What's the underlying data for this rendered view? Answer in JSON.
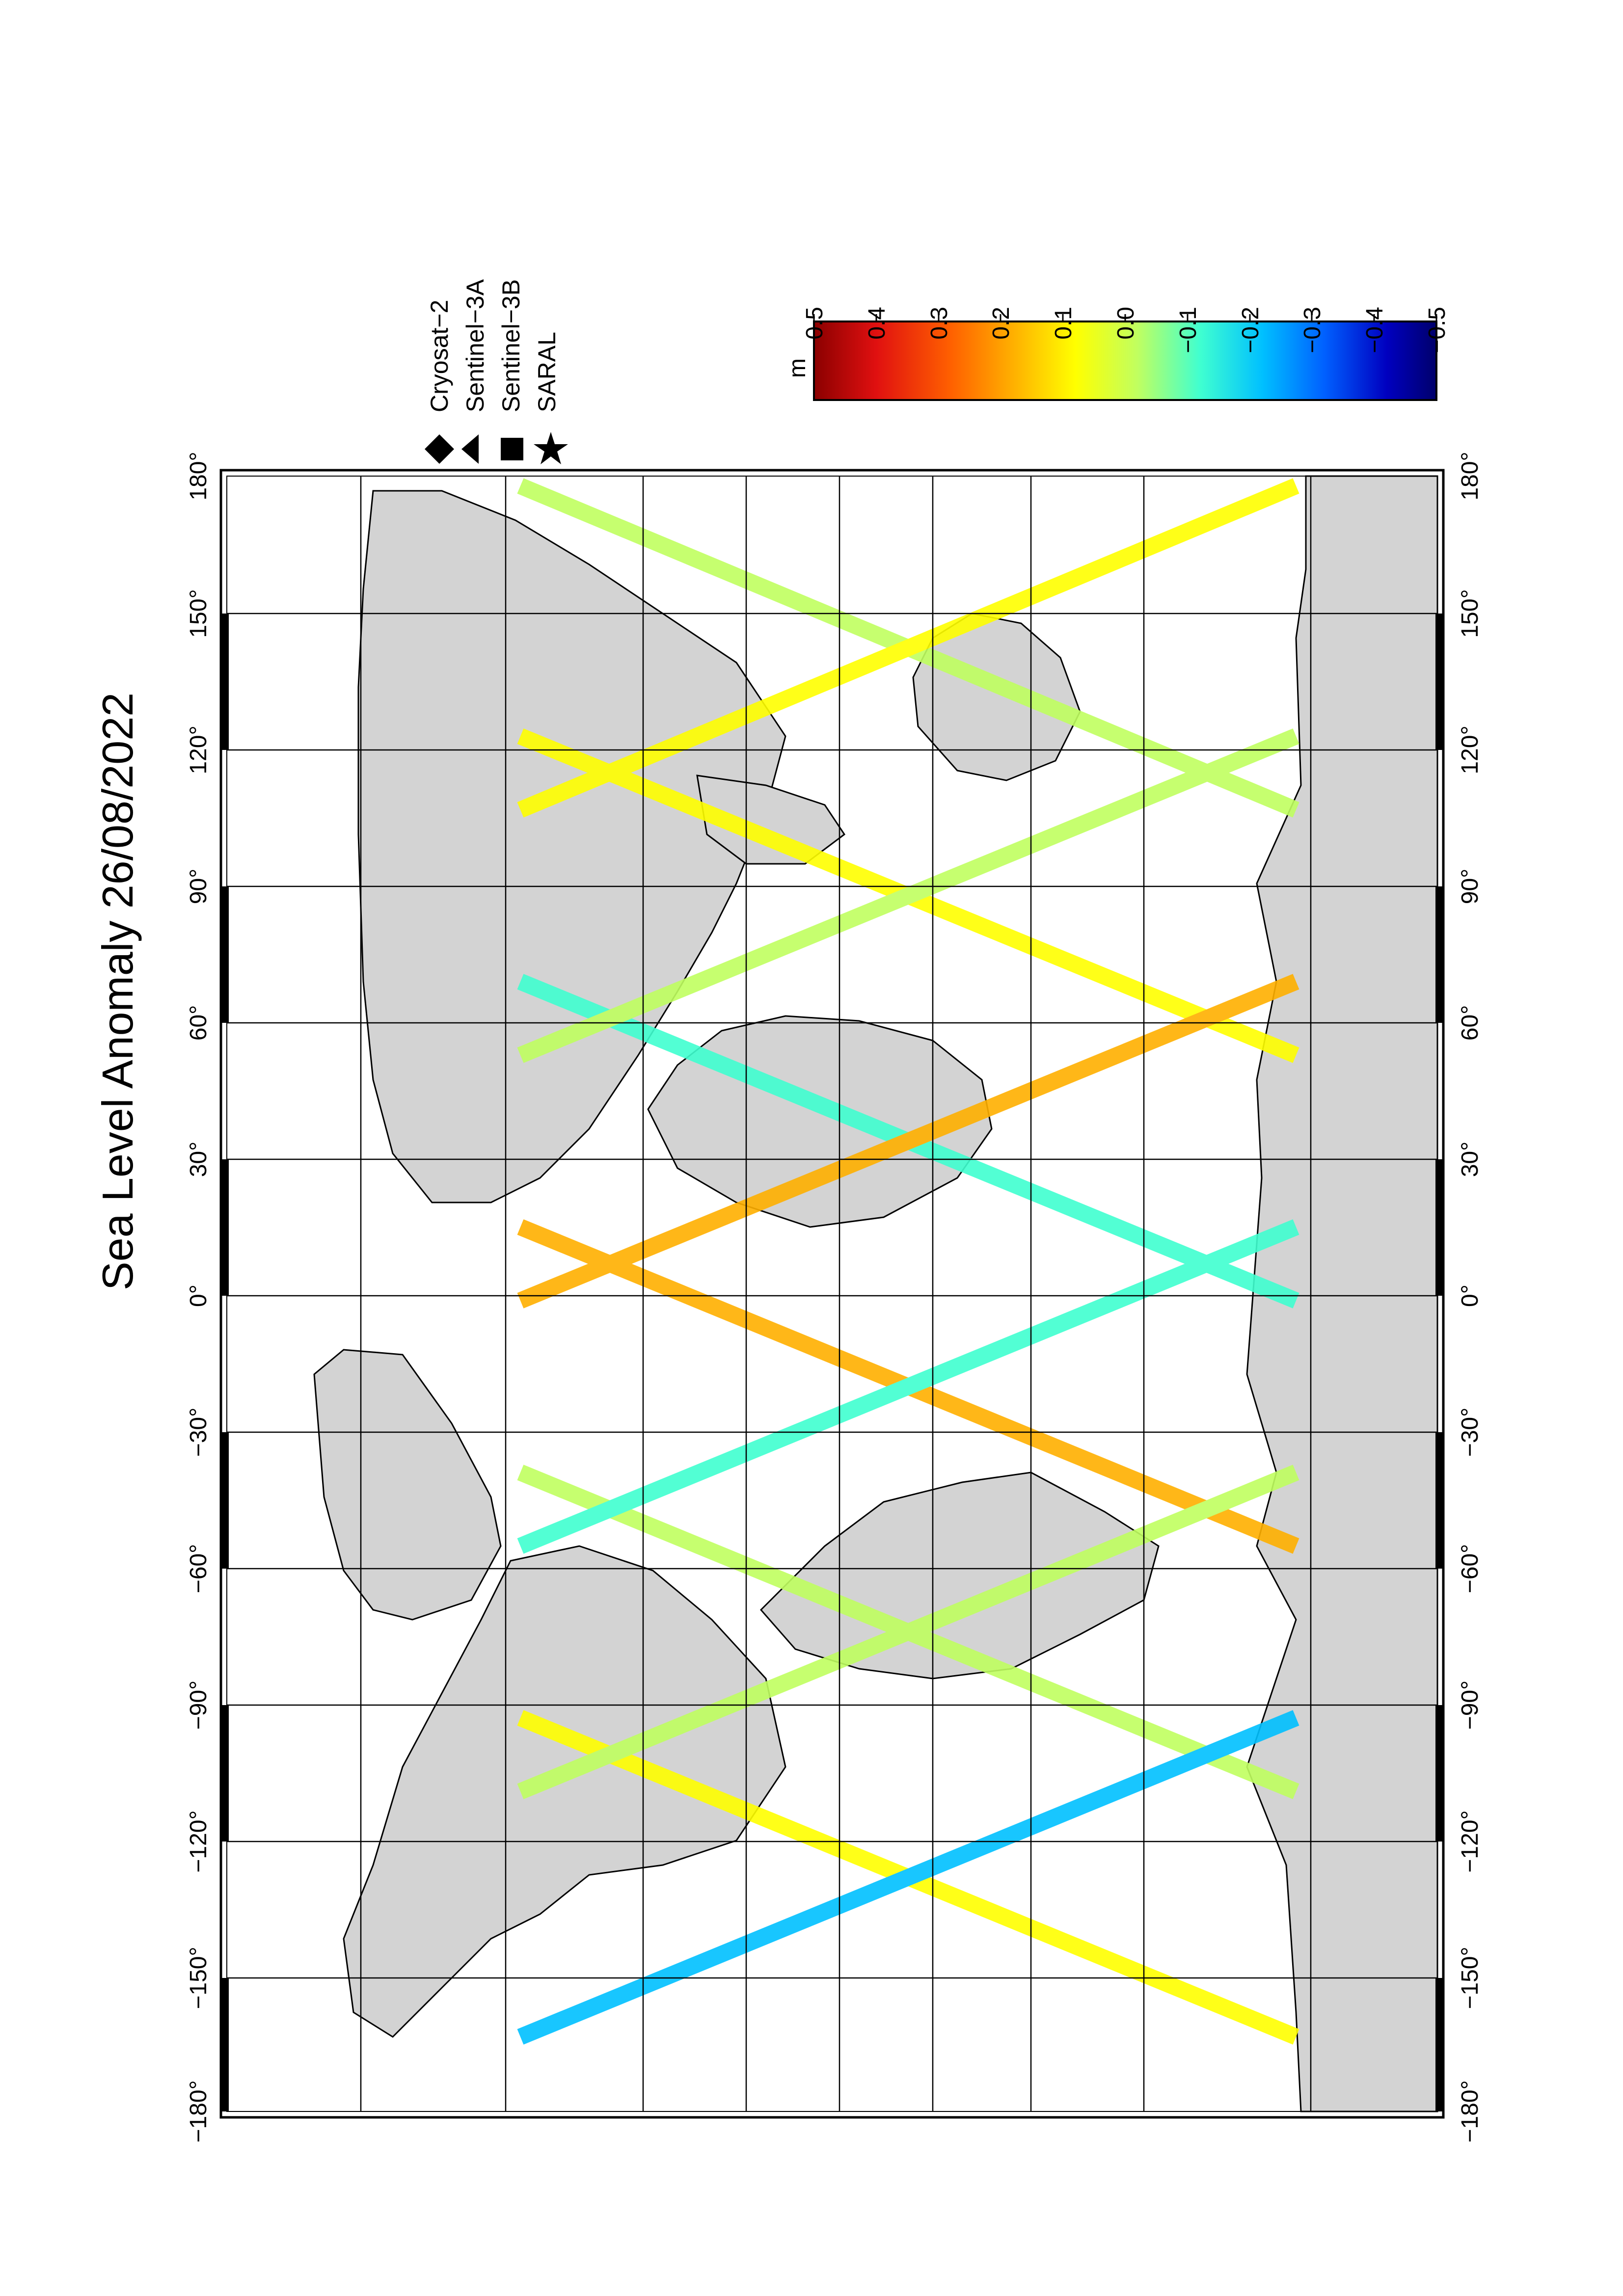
{
  "title": "Sea Level Anomaly 26/08/2022",
  "longitude_ticks": [
    "−180°",
    "−150°",
    "−120°",
    "−90°",
    "−60°",
    "−30°",
    "0°",
    "30°",
    "60°",
    "90°",
    "120°",
    "150°",
    "180°"
  ],
  "legend": {
    "items": [
      {
        "label": "Cryosat−2",
        "icon": "diamond-icon"
      },
      {
        "label": "Sentinel−3A",
        "icon": "triangle-icon"
      },
      {
        "label": "Sentinel−3B",
        "icon": "square-icon"
      },
      {
        "label": "SARAL",
        "icon": "star-icon"
      }
    ]
  },
  "colorbar": {
    "unit": "m",
    "ticks": [
      "0.5",
      "0.4",
      "0.3",
      "0.2",
      "0.1",
      "0.0",
      "−0.1",
      "−0.2",
      "−0.3",
      "−0.4",
      "−0.5"
    ],
    "colors": [
      "#8b0000",
      "#e01010",
      "#ff6000",
      "#ffb000",
      "#ffff00",
      "#c0ff60",
      "#40ffd0",
      "#00c0ff",
      "#0060ff",
      "#0000c0",
      "#00006b"
    ]
  },
  "colors": {
    "land": "#d3d3d3",
    "ice": "#d3d3d3",
    "frame": "#000000"
  }
}
